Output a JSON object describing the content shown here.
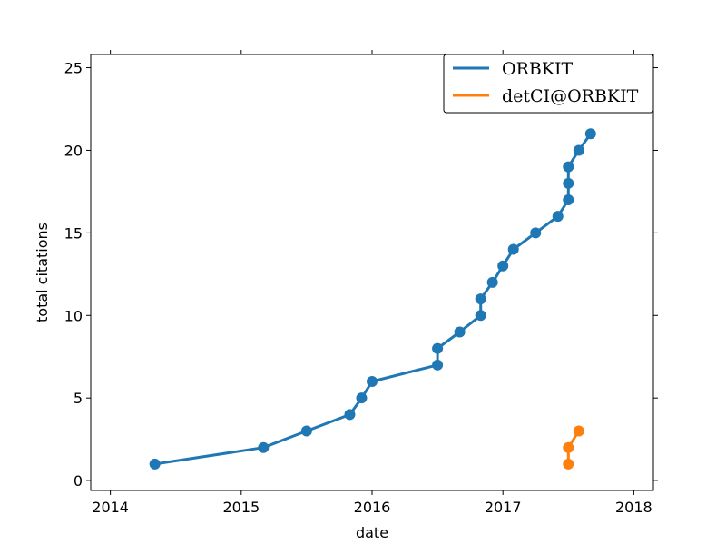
{
  "chart_data": {
    "type": "line",
    "title": "",
    "xlabel": "date",
    "ylabel": "total citations",
    "xlim": [
      2013.85,
      2018.15
    ],
    "ylim": [
      -0.6,
      25.8
    ],
    "x_ticks": [
      2014,
      2015,
      2016,
      2017,
      2018
    ],
    "x_tick_labels": [
      "2014",
      "2015",
      "2016",
      "2017",
      "2018"
    ],
    "y_ticks": [
      0,
      5,
      10,
      15,
      20,
      25
    ],
    "y_tick_labels": [
      "0",
      "5",
      "10",
      "15",
      "20",
      "25"
    ],
    "grid": false,
    "legend": {
      "position": "top-right",
      "labels": [
        "ORBKIT",
        "detCI@ORBKIT"
      ]
    },
    "series": [
      {
        "name": "ORBKIT",
        "color": "#1f77b4",
        "x": [
          2014.34,
          2015.17,
          2015.5,
          2015.83,
          2015.92,
          2016.0,
          2016.5,
          2016.5,
          2016.67,
          2016.83,
          2016.83,
          2016.92,
          2017.0,
          2017.08,
          2017.25,
          2017.42,
          2017.5,
          2017.5,
          2017.5,
          2017.58,
          2017.67
        ],
        "y": [
          1,
          2,
          3,
          4,
          5,
          6,
          7,
          8,
          9,
          10,
          11,
          12,
          13,
          14,
          15,
          16,
          17,
          18,
          19,
          20,
          21
        ]
      },
      {
        "name": "detCI@ORBKIT",
        "color": "#ff7f0e",
        "x": [
          2017.5,
          2017.5,
          2017.58
        ],
        "y": [
          1,
          2,
          3
        ]
      }
    ]
  }
}
